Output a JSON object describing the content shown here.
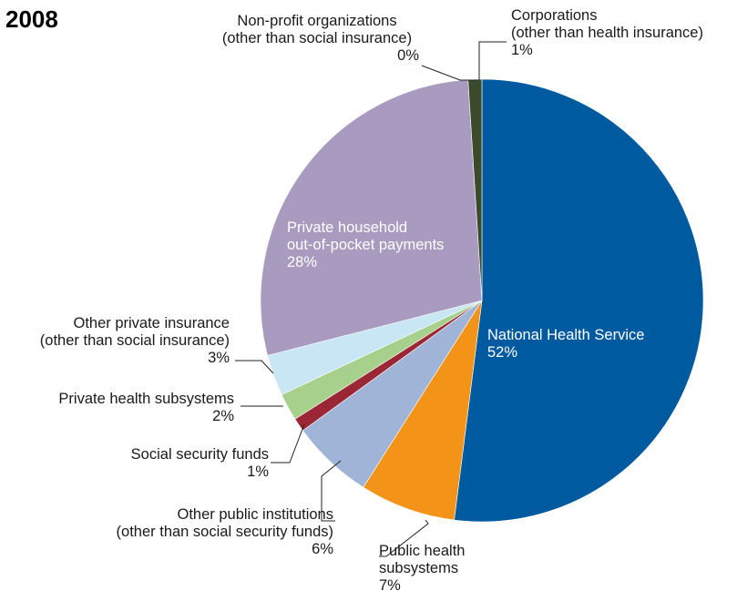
{
  "chart_data": {
    "type": "pie",
    "title": "2008",
    "start_angle_deg": 0,
    "direction": "clockwise",
    "slices": [
      {
        "name_lines": [
          "National Health Service"
        ],
        "value": 52,
        "label": "52%",
        "color": "#005aa0"
      },
      {
        "name_lines": [
          "Public health",
          "subsystems"
        ],
        "value": 7,
        "label": "7%",
        "color": "#f39419"
      },
      {
        "name_lines": [
          "Other public institutions",
          "(other than social security funds)"
        ],
        "value": 6,
        "label": "6%",
        "color": "#a0b4d7"
      },
      {
        "name_lines": [
          "Social security funds"
        ],
        "value": 1,
        "label": "1%",
        "color": "#9b2636"
      },
      {
        "name_lines": [
          "Private health subsystems"
        ],
        "value": 2,
        "label": "2%",
        "color": "#a8d08d"
      },
      {
        "name_lines": [
          "Other private insurance",
          "(other than social insurance)"
        ],
        "value": 3,
        "label": "3%",
        "color": "#c9e6f4"
      },
      {
        "name_lines": [
          "Private household",
          "out-of-pocket payments"
        ],
        "value": 28,
        "label": "28%",
        "color": "#a89bbf"
      },
      {
        "name_lines": [
          "Non-profit organizations",
          "(other than social insurance)"
        ],
        "value": 0,
        "label": "0%",
        "color": "#a89bbf"
      },
      {
        "name_lines": [
          "Corporations",
          "(other than health insurance)"
        ],
        "value": 1,
        "label": "1%",
        "color": "#3b4a2a"
      }
    ]
  }
}
